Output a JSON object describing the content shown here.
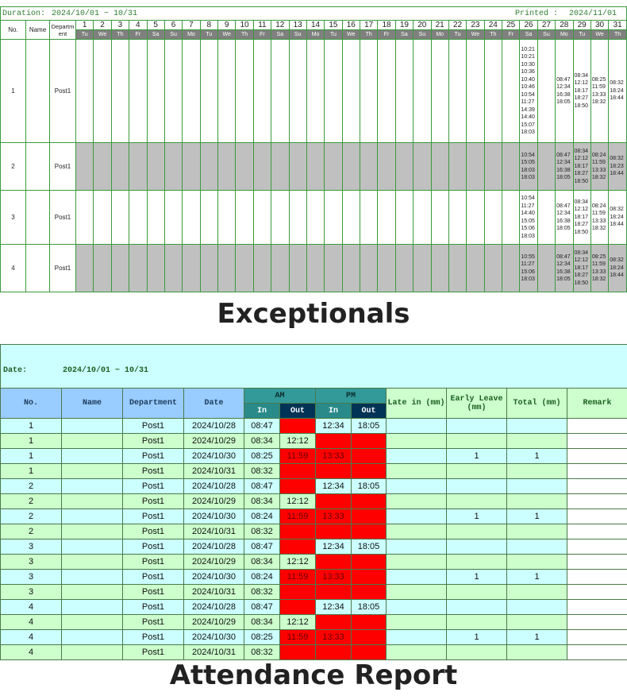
{
  "exceptionals": {
    "duration_label": "Duration:",
    "duration": "2024/10/01 ~ 10/31",
    "printed_label": "Printed :",
    "printed": "2024/11/01",
    "headers": {
      "no": "No.",
      "name": "Name",
      "department": "Department"
    },
    "days": [
      1,
      2,
      3,
      4,
      5,
      6,
      7,
      8,
      9,
      10,
      11,
      12,
      13,
      14,
      15,
      16,
      17,
      18,
      19,
      20,
      21,
      22,
      23,
      24,
      25,
      26,
      27,
      28,
      29,
      30,
      31
    ],
    "weekdays": [
      "Tu",
      "We",
      "Th",
      "Fr",
      "Sa",
      "Su",
      "Mo",
      "Tu",
      "We",
      "Th",
      "Fr",
      "Sa",
      "Su",
      "Mo",
      "Tu",
      "We",
      "Th",
      "Fr",
      "Sa",
      "Su",
      "Mo",
      "Tu",
      "We",
      "Th",
      "Fr",
      "Sa",
      "Su",
      "Mo",
      "Tu",
      "We",
      "Th"
    ],
    "shade_color": "#c0c0c0",
    "rows": [
      {
        "no": 1,
        "name": null,
        "department": "Post1",
        "shaded": false,
        "punches": [
          null,
          null,
          null,
          null,
          null,
          null,
          null,
          null,
          null,
          null,
          null,
          null,
          null,
          null,
          null,
          null,
          null,
          null,
          null,
          null,
          null,
          null,
          null,
          null,
          null,
          [
            "10:21",
            "10:21",
            "10:30",
            "10:36",
            "10:40",
            "10:46",
            "10:54",
            "11:27",
            "14:39",
            "14:40",
            "15:07",
            "18:03"
          ],
          null,
          [
            "08:47",
            "12:34",
            "16:38",
            "18:05"
          ],
          [
            "08:34",
            "12:12",
            "18:17",
            "18:27",
            "18:50"
          ],
          [
            "08:25",
            "11:59",
            "13:33",
            "18:32"
          ],
          [
            "08:32",
            "18:24",
            "18:44"
          ]
        ]
      },
      {
        "no": 2,
        "name": null,
        "department": "Post1",
        "shaded": true,
        "punches": [
          null,
          null,
          null,
          null,
          null,
          null,
          null,
          null,
          null,
          null,
          null,
          null,
          null,
          null,
          null,
          null,
          null,
          null,
          null,
          null,
          null,
          null,
          null,
          null,
          null,
          [
            "10:54",
            "15:05",
            "18:03",
            "18:03"
          ],
          null,
          [
            "08:47",
            "12:34",
            "16:38",
            "18:05"
          ],
          [
            "08:34",
            "12:12",
            "18:17",
            "18:27",
            "18:50"
          ],
          [
            "08:24",
            "11:59",
            "13:33",
            "18:32"
          ],
          [
            "08:32",
            "18:23",
            "18:44"
          ]
        ]
      },
      {
        "no": 3,
        "name": null,
        "department": "Post1",
        "shaded": false,
        "punches": [
          null,
          null,
          null,
          null,
          null,
          null,
          null,
          null,
          null,
          null,
          null,
          null,
          null,
          null,
          null,
          null,
          null,
          null,
          null,
          null,
          null,
          null,
          null,
          null,
          null,
          [
            "10:54",
            "11:27",
            "14:40",
            "15:05",
            "15:06",
            "18:03"
          ],
          null,
          [
            "08:47",
            "12:34",
            "16:38",
            "18:05"
          ],
          [
            "08:34",
            "12:12",
            "18:17",
            "18:27",
            "18:50"
          ],
          [
            "08:24",
            "11:59",
            "13:33",
            "18:32"
          ],
          [
            "08:32",
            "18:24",
            "18:44"
          ]
        ]
      },
      {
        "no": 4,
        "name": null,
        "department": "Post1",
        "shaded": true,
        "punches": [
          null,
          null,
          null,
          null,
          null,
          null,
          null,
          null,
          null,
          null,
          null,
          null,
          null,
          null,
          null,
          null,
          null,
          null,
          null,
          null,
          null,
          null,
          null,
          null,
          null,
          [
            "10:55",
            "11:27",
            "15:06",
            "18:03"
          ],
          null,
          [
            "08:47",
            "12:34",
            "16:38",
            "18:05"
          ],
          [
            "08:34",
            "12:12",
            "18:17",
            "18:27",
            "18:50"
          ],
          [
            "08:25",
            "11:59",
            "13:33",
            "18:32"
          ],
          [
            "08:32",
            "18:24",
            "18:44"
          ]
        ]
      }
    ],
    "caption": "Exceptionals"
  },
  "attendance": {
    "date_label": "Date:",
    "date": "2024/10/01 ~ 10/31",
    "headers": {
      "no": "No.",
      "name": "Name",
      "department": "Department",
      "date": "Date",
      "am": "AM",
      "pm": "PM",
      "in": "In",
      "out": "Out",
      "late": "Late in (mm)",
      "early": "Early Leave (mm)",
      "total": "Total (mm)",
      "remark": "Remark"
    },
    "flag_color": "#ff0000",
    "row_colors": [
      "#ccffff",
      "#ccffcc"
    ],
    "rows": [
      {
        "cells": [
          1,
          null,
          "Post1",
          "2024/10/28",
          "08:47",
          null,
          "12:34",
          "18:05",
          null,
          null,
          null,
          null
        ],
        "red": [
          5
        ]
      },
      {
        "cells": [
          1,
          null,
          "Post1",
          "2024/10/29",
          "08:34",
          "12:12",
          null,
          null,
          null,
          null,
          null,
          null
        ],
        "red": [
          6,
          7
        ]
      },
      {
        "cells": [
          1,
          null,
          "Post1",
          "2024/10/30",
          "08:25",
          "11:59",
          "13:33",
          null,
          null,
          1,
          1,
          null
        ],
        "red": [
          5,
          6,
          7
        ]
      },
      {
        "cells": [
          1,
          null,
          "Post1",
          "2024/10/31",
          "08:32",
          null,
          null,
          null,
          null,
          null,
          null,
          null
        ],
        "red": [
          5,
          6,
          7
        ]
      },
      {
        "cells": [
          2,
          null,
          "Post1",
          "2024/10/28",
          "08:47",
          null,
          "12:34",
          "18:05",
          null,
          null,
          null,
          null
        ],
        "red": [
          5
        ]
      },
      {
        "cells": [
          2,
          null,
          "Post1",
          "2024/10/29",
          "08:34",
          "12:12",
          null,
          null,
          null,
          null,
          null,
          null
        ],
        "red": [
          6,
          7
        ]
      },
      {
        "cells": [
          2,
          null,
          "Post1",
          "2024/10/30",
          "08:24",
          "11:59",
          "13:33",
          null,
          null,
          1,
          1,
          null
        ],
        "red": [
          5,
          6,
          7
        ]
      },
      {
        "cells": [
          2,
          null,
          "Post1",
          "2024/10/31",
          "08:32",
          null,
          null,
          null,
          null,
          null,
          null,
          null
        ],
        "red": [
          5,
          6,
          7
        ]
      },
      {
        "cells": [
          3,
          null,
          "Post1",
          "2024/10/28",
          "08:47",
          null,
          "12:34",
          "18:05",
          null,
          null,
          null,
          null
        ],
        "red": [
          5
        ]
      },
      {
        "cells": [
          3,
          null,
          "Post1",
          "2024/10/29",
          "08:34",
          "12:12",
          null,
          null,
          null,
          null,
          null,
          null
        ],
        "red": [
          6,
          7
        ]
      },
      {
        "cells": [
          3,
          null,
          "Post1",
          "2024/10/30",
          "08:24",
          "11:59",
          "13:33",
          null,
          null,
          1,
          1,
          null
        ],
        "red": [
          5,
          6,
          7
        ]
      },
      {
        "cells": [
          3,
          null,
          "Post1",
          "2024/10/31",
          "08:32",
          null,
          null,
          null,
          null,
          null,
          null,
          null
        ],
        "red": [
          5,
          6,
          7
        ]
      },
      {
        "cells": [
          4,
          null,
          "Post1",
          "2024/10/28",
          "08:47",
          null,
          "12:34",
          "18:05",
          null,
          null,
          null,
          null
        ],
        "red": [
          5
        ]
      },
      {
        "cells": [
          4,
          null,
          "Post1",
          "2024/10/29",
          "08:34",
          "12:12",
          null,
          null,
          null,
          null,
          null,
          null
        ],
        "red": [
          6,
          7
        ]
      },
      {
        "cells": [
          4,
          null,
          "Post1",
          "2024/10/30",
          "08:25",
          "11:59",
          "13:33",
          null,
          null,
          1,
          1,
          null
        ],
        "red": [
          5,
          6,
          7
        ]
      },
      {
        "cells": [
          4,
          null,
          "Post1",
          "2024/10/31",
          "08:32",
          null,
          null,
          null,
          null,
          null,
          null,
          null
        ],
        "red": [
          5,
          6,
          7
        ]
      }
    ],
    "caption": "Attendance Report"
  }
}
